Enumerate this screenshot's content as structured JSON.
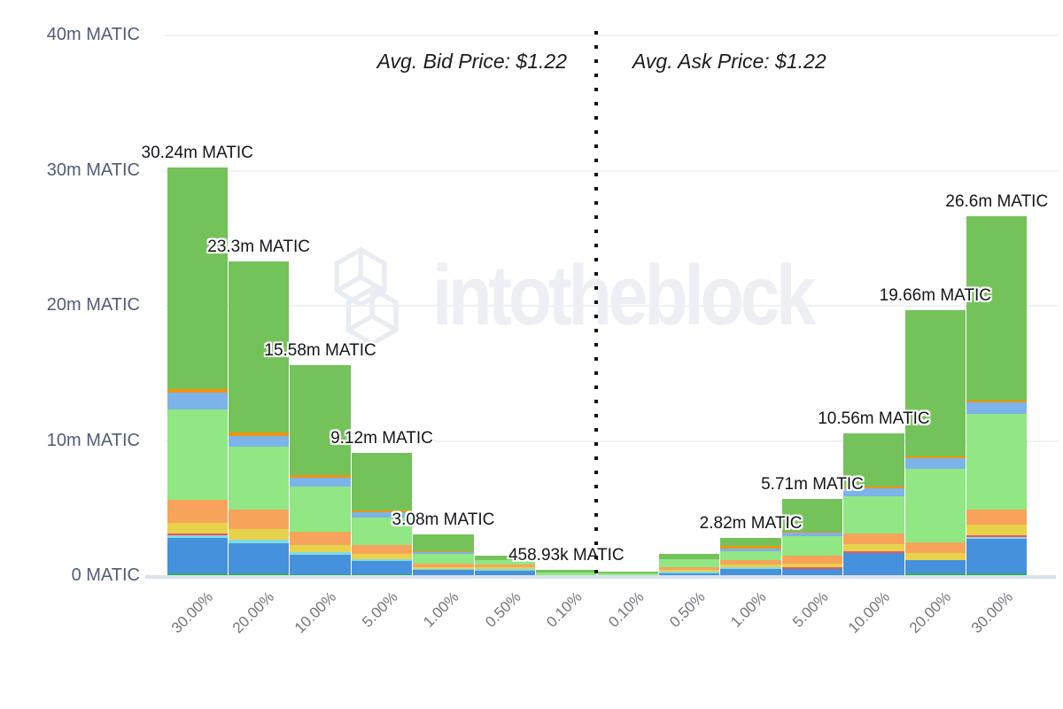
{
  "watermark": {
    "text": "intotheblock"
  },
  "annotations": {
    "bid": "Avg. Bid Price: $1.22",
    "ask": "Avg. Ask Price: $1.22"
  },
  "colors": {
    "background": "#ffffff",
    "divider": "#101010",
    "axis_line": "#dbe1ee",
    "gridline": "#f0f1f4",
    "y_label_text": "#505d78",
    "x_label_text": "#74767b",
    "bar_label_text": "#14161a",
    "watermark_text": "#edeff4",
    "palette": {
      "blue": "#4691dc",
      "cyan": "#7fdbe6",
      "red": "#ec5565",
      "yellow": "#e7d34b",
      "orange": "#f7a45a",
      "light_green": "#90e783",
      "sky_blue": "#7cb3e8",
      "orange_dark": "#f2930f",
      "green": "#74c25a",
      "teal_green": "#2fae60"
    }
  },
  "chart_data": {
    "type": "bar",
    "stacked": true,
    "unit": "MATIC",
    "grid": true,
    "ylim_matic": [
      0,
      40000000
    ],
    "y_ticks": [
      {
        "value_m": 0,
        "label": "0 MATIC"
      },
      {
        "value_m": 10,
        "label": "10m MATIC"
      },
      {
        "value_m": 20,
        "label": "20m MATIC"
      },
      {
        "value_m": 30,
        "label": "30m MATIC"
      },
      {
        "value_m": 40,
        "label": "40m MATIC"
      }
    ],
    "categories": [
      "30.00%",
      "20.00%",
      "10.00%",
      "5.00%",
      "1.00%",
      "0.50%",
      "0.10%",
      "0.10%",
      "0.50%",
      "1.00%",
      "5.00%",
      "10.00%",
      "20.00%",
      "30.00%"
    ],
    "bars": [
      {
        "side": "bid",
        "category": "30.00%",
        "total_m": 30.24,
        "label": "30.24m MATIC",
        "segments": [
          {
            "color": "teal_green",
            "pct": 0.7
          },
          {
            "color": "blue",
            "pct": 8.7
          },
          {
            "color": "cyan",
            "pct": 0.5
          },
          {
            "color": "red",
            "pct": 0.5
          },
          {
            "color": "yellow",
            "pct": 2.7
          },
          {
            "color": "orange",
            "pct": 5.6
          },
          {
            "color": "light_green",
            "pct": 22.0
          },
          {
            "color": "sky_blue",
            "pct": 4.2
          },
          {
            "color": "orange_dark",
            "pct": 0.9
          },
          {
            "color": "green",
            "pct": 54.2
          }
        ]
      },
      {
        "side": "bid",
        "category": "20.00%",
        "total_m": 23.3,
        "label": "23.3m MATIC",
        "segments": [
          {
            "color": "teal_green",
            "pct": 0.8
          },
          {
            "color": "blue",
            "pct": 9.5
          },
          {
            "color": "cyan",
            "pct": 1.1
          },
          {
            "color": "yellow",
            "pct": 3.4
          },
          {
            "color": "orange",
            "pct": 6.2
          },
          {
            "color": "light_green",
            "pct": 20.0
          },
          {
            "color": "sky_blue",
            "pct": 3.4
          },
          {
            "color": "orange_dark",
            "pct": 1.1
          },
          {
            "color": "green",
            "pct": 54.5
          }
        ]
      },
      {
        "side": "bid",
        "category": "10.00%",
        "total_m": 15.58,
        "label": "15.58m MATIC",
        "segments": [
          {
            "color": "teal_green",
            "pct": 1.0
          },
          {
            "color": "blue",
            "pct": 9.0
          },
          {
            "color": "cyan",
            "pct": 1.3
          },
          {
            "color": "yellow",
            "pct": 3.4
          },
          {
            "color": "orange",
            "pct": 6.3
          },
          {
            "color": "light_green",
            "pct": 21.5
          },
          {
            "color": "sky_blue",
            "pct": 4.2
          },
          {
            "color": "orange_dark",
            "pct": 1.3
          },
          {
            "color": "green",
            "pct": 52.0
          }
        ]
      },
      {
        "side": "bid",
        "category": "5.00%",
        "total_m": 9.12,
        "label": "9.12m MATIC",
        "segments": [
          {
            "color": "teal_green",
            "pct": 1.2
          },
          {
            "color": "blue",
            "pct": 11.0
          },
          {
            "color": "cyan",
            "pct": 1.5
          },
          {
            "color": "yellow",
            "pct": 4.3
          },
          {
            "color": "orange",
            "pct": 7.2
          },
          {
            "color": "light_green",
            "pct": 22.0
          },
          {
            "color": "sky_blue",
            "pct": 4.3
          },
          {
            "color": "orange_dark",
            "pct": 1.5
          },
          {
            "color": "green",
            "pct": 47.0
          }
        ]
      },
      {
        "side": "bid",
        "category": "1.00%",
        "total_m": 3.08,
        "label": "3.08m MATIC",
        "segments": [
          {
            "color": "teal_green",
            "pct": 1.5
          },
          {
            "color": "blue",
            "pct": 13.0
          },
          {
            "color": "cyan",
            "pct": 2.0
          },
          {
            "color": "yellow",
            "pct": 5.0
          },
          {
            "color": "orange",
            "pct": 9.0
          },
          {
            "color": "light_green",
            "pct": 23.0
          },
          {
            "color": "sky_blue",
            "pct": 4.0
          },
          {
            "color": "orange_dark",
            "pct": 1.5
          },
          {
            "color": "green",
            "pct": 41.0
          }
        ]
      },
      {
        "side": "bid",
        "category": "0.50%",
        "total_m": 1.5,
        "label": null,
        "segments": [
          {
            "color": "blue",
            "pct": 28.0
          },
          {
            "color": "cyan",
            "pct": 6.0
          },
          {
            "color": "yellow",
            "pct": 8.0
          },
          {
            "color": "orange",
            "pct": 14.0
          },
          {
            "color": "light_green",
            "pct": 24.0
          },
          {
            "color": "green",
            "pct": 20.0
          }
        ]
      },
      {
        "side": "bid",
        "category": "0.10%",
        "total_m": 0.46,
        "label": "458.93k MATIC",
        "segments": [
          {
            "color": "light_green",
            "pct": 55.0
          },
          {
            "color": "green",
            "pct": 45.0
          }
        ]
      },
      {
        "side": "ask",
        "category": "0.10%",
        "total_m": 0.35,
        "label": null,
        "segments": [
          {
            "color": "light_green",
            "pct": 55.0
          },
          {
            "color": "green",
            "pct": 45.0
          }
        ]
      },
      {
        "side": "ask",
        "category": "0.50%",
        "total_m": 1.63,
        "label": null,
        "segments": [
          {
            "color": "blue",
            "pct": 14.0
          },
          {
            "color": "cyan",
            "pct": 5.0
          },
          {
            "color": "yellow",
            "pct": 9.0
          },
          {
            "color": "orange",
            "pct": 13.0
          },
          {
            "color": "light_green",
            "pct": 35.0
          },
          {
            "color": "green",
            "pct": 24.0
          }
        ]
      },
      {
        "side": "ask",
        "category": "1.00%",
        "total_m": 2.82,
        "label": "2.82m MATIC",
        "segments": [
          {
            "color": "blue",
            "pct": 19.0
          },
          {
            "color": "cyan",
            "pct": 5.0
          },
          {
            "color": "yellow",
            "pct": 7.0
          },
          {
            "color": "orange",
            "pct": 12.0
          },
          {
            "color": "light_green",
            "pct": 23.0
          },
          {
            "color": "sky_blue",
            "pct": 7.0
          },
          {
            "color": "orange_dark",
            "pct": 5.0
          },
          {
            "color": "green",
            "pct": 22.0
          }
        ]
      },
      {
        "side": "ask",
        "category": "5.00%",
        "total_m": 5.71,
        "label": "5.71m MATIC",
        "segments": [
          {
            "color": "blue",
            "pct": 9.0
          },
          {
            "color": "red",
            "pct": 2.0
          },
          {
            "color": "yellow",
            "pct": 5.0
          },
          {
            "color": "orange",
            "pct": 10.0
          },
          {
            "color": "light_green",
            "pct": 26.0
          },
          {
            "color": "sky_blue",
            "pct": 4.0
          },
          {
            "color": "orange_dark",
            "pct": 2.0
          },
          {
            "color": "green",
            "pct": 42.0
          }
        ]
      },
      {
        "side": "ask",
        "category": "10.00%",
        "total_m": 10.56,
        "label": "10.56m MATIC",
        "segments": [
          {
            "color": "blue",
            "pct": 16.0
          },
          {
            "color": "red",
            "pct": 1.2
          },
          {
            "color": "yellow",
            "pct": 5.0
          },
          {
            "color": "orange",
            "pct": 7.5
          },
          {
            "color": "light_green",
            "pct": 26.0
          },
          {
            "color": "sky_blue",
            "pct": 6.0
          },
          {
            "color": "orange_dark",
            "pct": 1.3
          },
          {
            "color": "green",
            "pct": 37.0
          }
        ]
      },
      {
        "side": "ask",
        "category": "20.00%",
        "total_m": 19.66,
        "label": "19.66m MATIC",
        "segments": [
          {
            "color": "teal_green",
            "pct": 1.0
          },
          {
            "color": "blue",
            "pct": 5.0
          },
          {
            "color": "yellow",
            "pct": 2.7
          },
          {
            "color": "orange",
            "pct": 4.0
          },
          {
            "color": "light_green",
            "pct": 27.5
          },
          {
            "color": "sky_blue",
            "pct": 4.0
          },
          {
            "color": "orange_dark",
            "pct": 0.8
          },
          {
            "color": "green",
            "pct": 55.0
          }
        ]
      },
      {
        "side": "ask",
        "category": "30.00%",
        "total_m": 26.6,
        "label": "26.6m MATIC",
        "segments": [
          {
            "color": "teal_green",
            "pct": 0.7
          },
          {
            "color": "blue",
            "pct": 9.6
          },
          {
            "color": "cyan",
            "pct": 0.5
          },
          {
            "color": "red",
            "pct": 0.5
          },
          {
            "color": "yellow",
            "pct": 3.0
          },
          {
            "color": "orange",
            "pct": 4.2
          },
          {
            "color": "light_green",
            "pct": 26.6
          },
          {
            "color": "sky_blue",
            "pct": 3.2
          },
          {
            "color": "orange_dark",
            "pct": 0.5
          },
          {
            "color": "green",
            "pct": 51.2
          }
        ]
      }
    ]
  }
}
